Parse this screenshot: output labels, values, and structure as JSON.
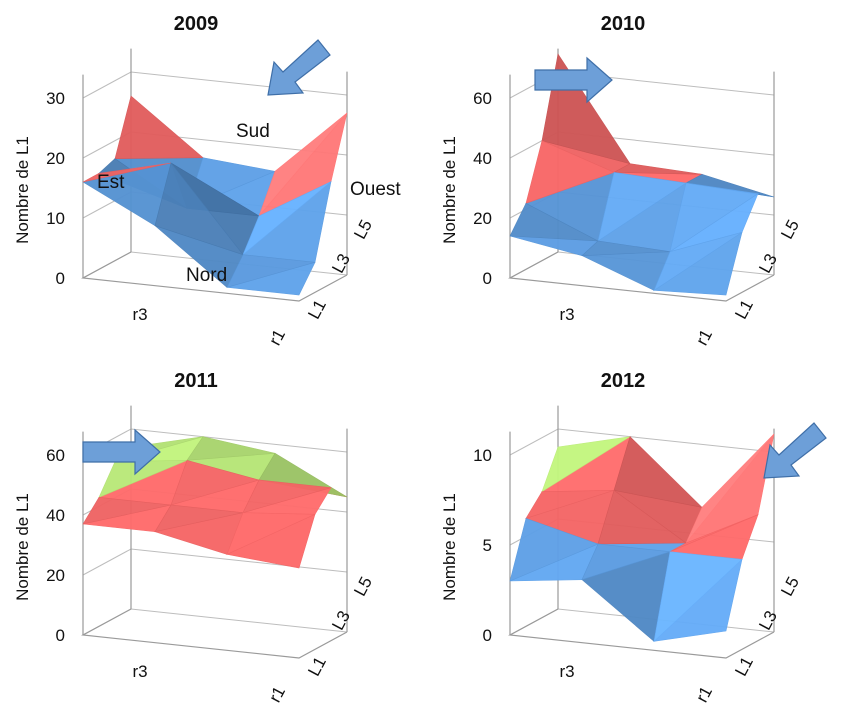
{
  "chart_data": [
    {
      "type": "surface",
      "title": "2009",
      "zlabel": "Nombre de L1",
      "zlim": [
        0,
        30
      ],
      "z_ticks": [
        "0",
        "10",
        "20",
        "30"
      ],
      "x_tick_labels": [
        "r3",
        "r1"
      ],
      "y_tick_labels": [
        "L1",
        "L3",
        "L5"
      ],
      "annotations": [
        "Sud",
        "Est",
        "Ouest",
        "Nord"
      ],
      "arrow": "down-left",
      "values": [
        [
          16,
          10,
          1,
          1
        ],
        [
          16,
          19,
          5,
          5
        ],
        [
          17,
          10,
          10,
          17
        ],
        [
          26,
          17,
          16,
          27
        ]
      ]
    },
    {
      "type": "surface",
      "title": "2010",
      "zlabel": "Nombre de L1",
      "zlim": [
        0,
        60
      ],
      "z_ticks": [
        "0",
        "20",
        "40",
        "60"
      ],
      "x_tick_labels": [
        "r3",
        "r1"
      ],
      "y_tick_labels": [
        "L1",
        "L3",
        "L5"
      ],
      "annotations": [],
      "arrow": "right",
      "values": [
        [
          14,
          10,
          1,
          2
        ],
        [
          22,
          12,
          11,
          20
        ],
        [
          40,
          32,
          31,
          30
        ],
        [
          66,
          32,
          31,
          26
        ]
      ]
    },
    {
      "type": "surface",
      "title": "2011",
      "zlabel": "Nombre de L1",
      "zlim": [
        0,
        60
      ],
      "z_ticks": [
        "0",
        "20",
        "40",
        "60"
      ],
      "x_tick_labels": [
        "r3",
        "r1"
      ],
      "y_tick_labels": [
        "L1",
        "L3",
        "L5"
      ],
      "annotations": [],
      "arrow": "right",
      "values": [
        [
          37,
          37,
          32,
          30
        ],
        [
          43,
          43,
          43,
          45
        ],
        [
          52,
          55,
          51,
          51
        ],
        [
          54,
          60,
          57,
          45
        ]
      ]
    },
    {
      "type": "surface",
      "title": "2012",
      "zlabel": "Nombre de L1",
      "zlim": [
        0,
        10
      ],
      "z_ticks": [
        "0",
        "5",
        "10"
      ],
      "x_tick_labels": [
        "r3",
        "r1"
      ],
      "y_tick_labels": [
        "L1",
        "L3",
        "L5"
      ],
      "annotations": [],
      "arrow": "down-left",
      "values": [
        [
          3,
          3.5,
          0.5,
          1.5
        ],
        [
          6,
          5,
          5,
          5
        ],
        [
          7,
          7.5,
          5,
          7
        ],
        [
          9,
          10,
          6.5,
          11
        ]
      ]
    }
  ]
}
